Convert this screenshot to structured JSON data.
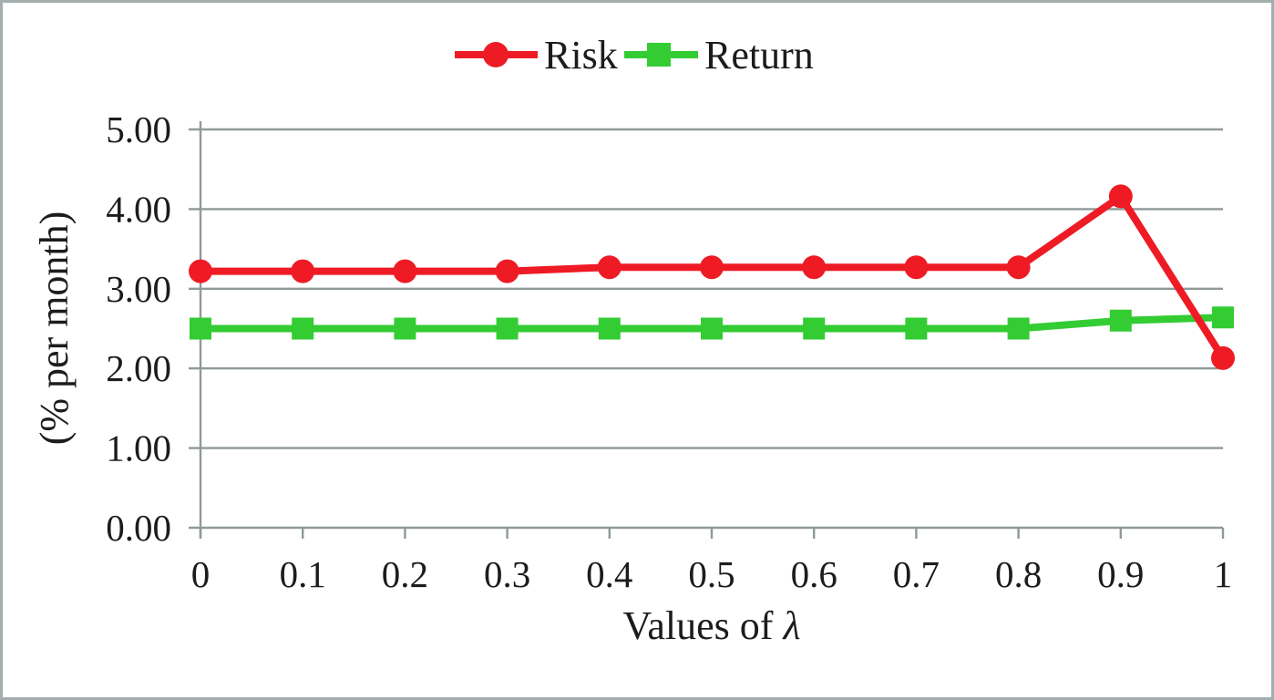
{
  "figure": {
    "border_color": "#a3aeae",
    "background_color": "#ffffff",
    "text_color": "#1c1c1c"
  },
  "chart_data": {
    "type": "line",
    "title": "",
    "xlabel": "Values of λ",
    "xlabel_prefix": "Values of ",
    "xlabel_symbol": "λ",
    "ylabel": "(% per month)",
    "x_categories": [
      "0",
      "0.1",
      "0.2",
      "0.3",
      "0.4",
      "0.5",
      "0.6",
      "0.7",
      "0.8",
      "0.9",
      "1"
    ],
    "x_values": [
      0,
      0.1,
      0.2,
      0.3,
      0.4,
      0.5,
      0.6,
      0.7,
      0.8,
      0.9,
      1
    ],
    "ylim": [
      0,
      5
    ],
    "ytick_labels": [
      "0.00",
      "1.00",
      "2.00",
      "3.00",
      "4.00",
      "5.00"
    ],
    "grid": "horizontal-only",
    "legend_position": "top-center",
    "axis_color": "#8f9999",
    "series": [
      {
        "name": "Risk",
        "color": "#ee1b25",
        "marker": "circle",
        "values": [
          3.22,
          3.22,
          3.22,
          3.22,
          3.27,
          3.27,
          3.27,
          3.27,
          3.27,
          4.16,
          2.13
        ]
      },
      {
        "name": "Return",
        "color": "#33cc33",
        "marker": "square",
        "values": [
          2.5,
          2.5,
          2.5,
          2.5,
          2.5,
          2.5,
          2.5,
          2.5,
          2.5,
          2.6,
          2.64
        ]
      }
    ]
  }
}
